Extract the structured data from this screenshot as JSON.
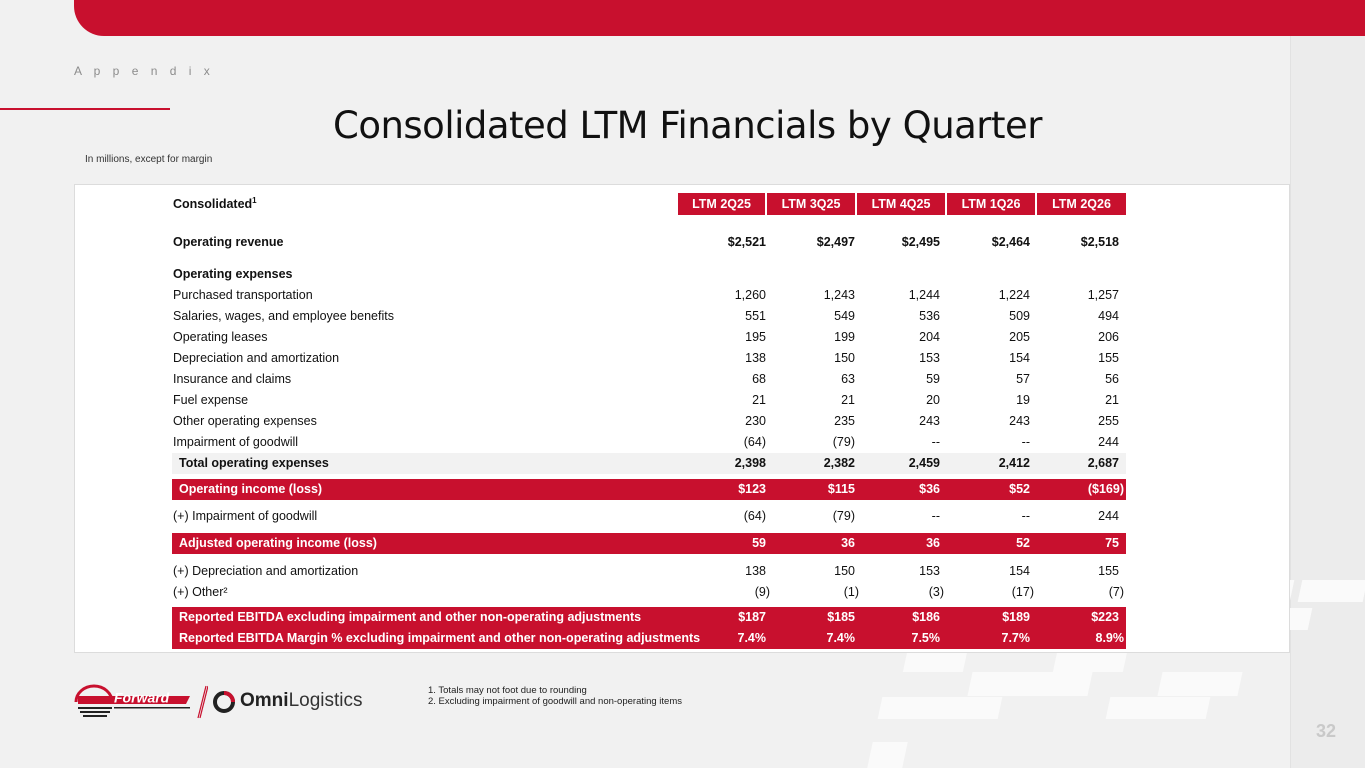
{
  "header": {
    "section": "A p p e n d i x",
    "title": "Consolidated LTM Financials by Quarter",
    "unit_note": "In millions, except for margin"
  },
  "table": {
    "title": "Consolidated",
    "title_sup": "1",
    "columns": [
      "LTM 2Q25",
      "LTM 3Q25",
      "LTM 4Q25",
      "LTM 1Q26",
      "LTM 2Q26"
    ],
    "rows": [
      {
        "label": "Operating revenue",
        "values": [
          "$2,521",
          "$2,497",
          "$2,495",
          "$2,464",
          "$2,518"
        ]
      },
      {
        "label": "Operating expenses",
        "values": []
      },
      {
        "label": "Purchased transportation",
        "values": [
          "1,260",
          "1,243",
          "1,244",
          "1,224",
          "1,257"
        ]
      },
      {
        "label": "Salaries, wages, and employee benefits",
        "values": [
          "551",
          "549",
          "536",
          "509",
          "494"
        ]
      },
      {
        "label": "Operating leases",
        "values": [
          "195",
          "199",
          "204",
          "205",
          "206"
        ]
      },
      {
        "label": "Depreciation and amortization",
        "values": [
          "138",
          "150",
          "153",
          "154",
          "155"
        ]
      },
      {
        "label": "Insurance and claims",
        "values": [
          "68",
          "63",
          "59",
          "57",
          "56"
        ]
      },
      {
        "label": "Fuel expense",
        "values": [
          "21",
          "21",
          "20",
          "19",
          "21"
        ]
      },
      {
        "label": "Other operating expenses",
        "values": [
          "230",
          "235",
          "243",
          "243",
          "255"
        ]
      },
      {
        "label": "Impairment of goodwill",
        "values": [
          "(64)",
          "(79)",
          "--",
          "--",
          "244"
        ]
      },
      {
        "label": "Total operating expenses",
        "values": [
          "2,398",
          "2,382",
          "2,459",
          "2,412",
          "2,687"
        ]
      },
      {
        "label": "Operating income (loss)",
        "values": [
          "$123",
          "$115",
          "$36",
          "$52",
          "($169)"
        ]
      },
      {
        "label": "(+) Impairment of goodwill",
        "values": [
          "(64)",
          "(79)",
          "--",
          "--",
          "244"
        ]
      },
      {
        "label": "Adjusted operating income (loss)",
        "values": [
          "59",
          "36",
          "36",
          "52",
          "75"
        ]
      },
      {
        "label": "(+) Depreciation and amortization",
        "values": [
          "138",
          "150",
          "153",
          "154",
          "155"
        ]
      },
      {
        "label": "(+) Other²",
        "values": [
          "(9)",
          "(1)",
          "(3)",
          "(17)",
          "(7)"
        ]
      },
      {
        "label": "Reported EBITDA excluding impairment and other non-operating adjustments",
        "values": [
          "$187",
          "$185",
          "$186",
          "$189",
          "$223"
        ]
      },
      {
        "label": "Reported EBITDA Margin % excluding impairment and other non-operating adjustments",
        "values": [
          "7.4%",
          "7.4%",
          "7.5%",
          "7.7%",
          "8.9%"
        ]
      }
    ]
  },
  "footnotes": [
    "1.  Totals may not foot due to rounding",
    "2.  Excluding impairment of goodwill and non-operating items"
  ],
  "logos": {
    "forward": "Forward",
    "omni_bold": "Omni",
    "omni_light": "Logistics"
  },
  "page_number": "32",
  "colors": {
    "accent": "#c8102e",
    "background": "#f1f1f1"
  }
}
